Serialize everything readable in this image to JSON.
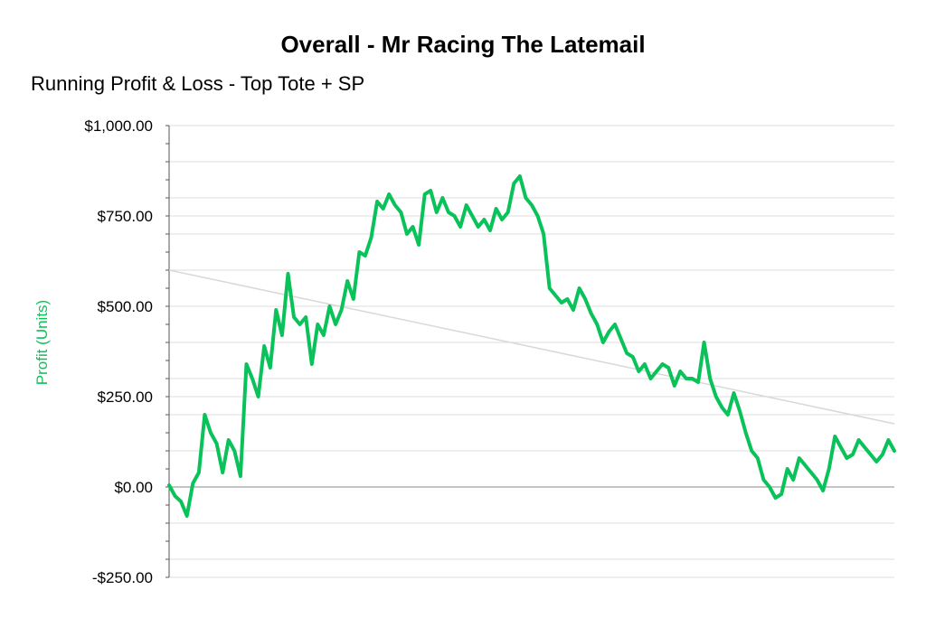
{
  "colors": {
    "series": "#0ac25a",
    "ylabel": "#0ac25a",
    "trend": "#d8d8d8",
    "grid": "#dddddd",
    "axis": "#555555"
  },
  "chart_data": {
    "type": "line",
    "title": "Overall - Mr Racing The Latemail",
    "subtitle": "Running Profit & Loss - Top Tote + SP",
    "xlabel": "",
    "ylabel": "Profit (Units)",
    "ylim": [
      -250,
      1000
    ],
    "yticks": [
      -250,
      0,
      250,
      500,
      750,
      1000
    ],
    "ytick_labels": [
      "-$250.00",
      "$0.00",
      "$250.00",
      "$500.00",
      "$750.00",
      "$1,000.00"
    ],
    "grid": true,
    "x_axis_labels": false,
    "trendline": {
      "start": 600,
      "end": 175
    },
    "series": [
      {
        "values": [
          5,
          -25,
          -40,
          -80,
          10,
          40,
          200,
          150,
          120,
          40,
          130,
          100,
          30,
          340,
          300,
          250,
          390,
          330,
          490,
          420,
          590,
          470,
          450,
          470,
          340,
          450,
          420,
          500,
          450,
          490,
          570,
          520,
          650,
          640,
          690,
          790,
          770,
          810,
          780,
          760,
          700,
          720,
          670,
          810,
          820,
          760,
          800,
          760,
          750,
          720,
          780,
          750,
          720,
          740,
          710,
          770,
          740,
          760,
          840,
          860,
          800,
          780,
          750,
          700,
          550,
          530,
          510,
          520,
          490,
          550,
          520,
          480,
          450,
          400,
          430,
          450,
          410,
          370,
          360,
          320,
          340,
          300,
          320,
          340,
          330,
          280,
          320,
          300,
          300,
          290,
          400,
          300,
          250,
          220,
          200,
          260,
          210,
          150,
          100,
          80,
          20,
          0,
          -30,
          -20,
          50,
          20,
          80,
          60,
          40,
          20,
          -10,
          50,
          140,
          110,
          80,
          90,
          130,
          110,
          90,
          70,
          90,
          130,
          100
        ],
        "color": "#0ac25a"
      }
    ]
  }
}
